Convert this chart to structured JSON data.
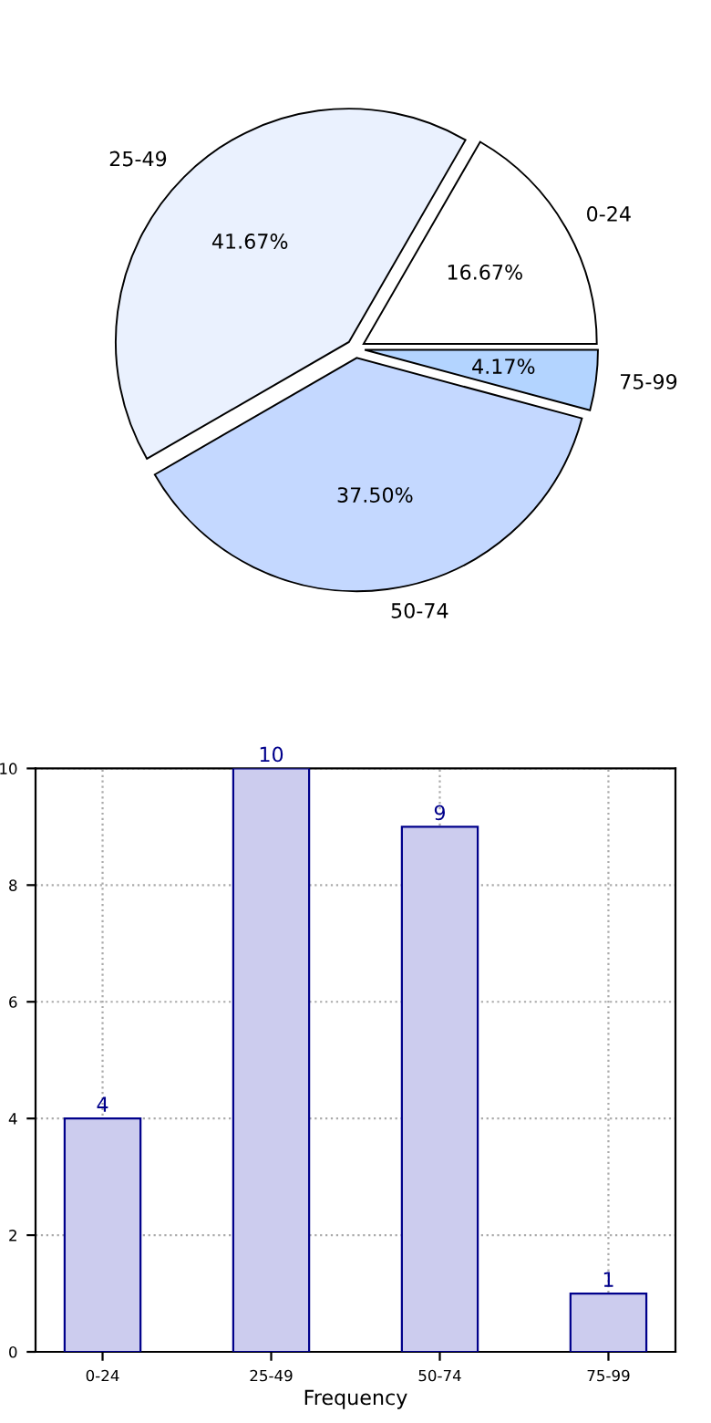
{
  "chart_data": [
    {
      "type": "pie",
      "categories": [
        "0-24",
        "25-49",
        "50-74",
        "75-99"
      ],
      "values": [
        16.67,
        41.67,
        37.5,
        4.17
      ],
      "value_labels": [
        "16.67%",
        "41.67%",
        "37.50%",
        "4.17%"
      ],
      "colors": [
        "#ffffff",
        "#eaf1fe",
        "#c4d8ff",
        "#b3d4ff"
      ]
    },
    {
      "type": "bar",
      "categories": [
        "0-24",
        "25-49",
        "50-74",
        "75-99"
      ],
      "values": [
        4,
        10,
        9,
        1
      ],
      "color": "#ccccee",
      "data_labels": true,
      "xlabel": "Frequency",
      "ylim": [
        0,
        10
      ],
      "yticks": [
        0,
        2,
        4,
        6,
        8,
        10
      ],
      "grid": true,
      "line_style": "dotted"
    }
  ]
}
